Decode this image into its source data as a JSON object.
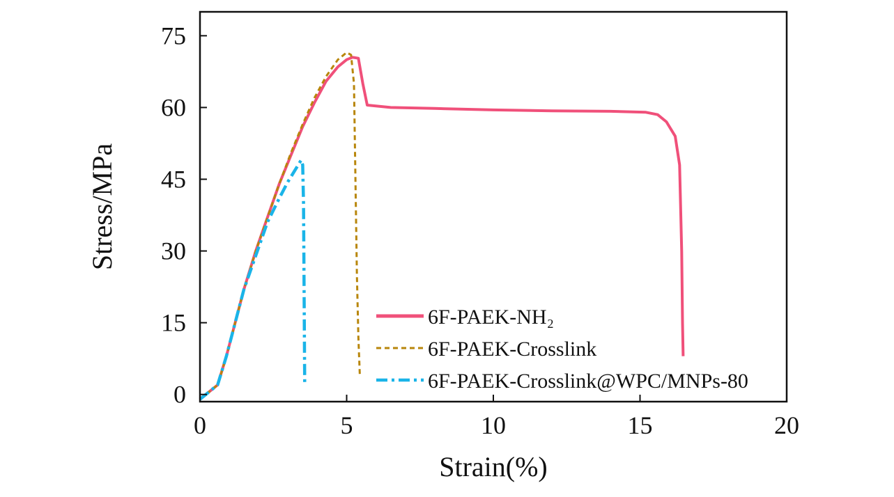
{
  "chart_data": {
    "type": "line",
    "title": "",
    "xlabel": "Strain(%)",
    "ylabel": "Stress/MPa",
    "xlim": [
      0,
      20
    ],
    "ylim": [
      -1.5,
      80
    ],
    "xticks": [
      0,
      5,
      10,
      15,
      20
    ],
    "yticks": [
      0,
      15,
      30,
      45,
      60,
      75
    ],
    "xtick_labels": [
      "0",
      "5",
      "10",
      "15",
      "20"
    ],
    "ytick_labels": [
      "0",
      "15",
      "30",
      "45",
      "60",
      "75"
    ],
    "grid": false,
    "legend_position": "bottom-right",
    "series": [
      {
        "name": "6F-PAEK-NH₂",
        "color": "#f0507a",
        "style": "solid",
        "x": [
          0,
          0.3,
          0.6,
          0.9,
          1.2,
          1.5,
          1.9,
          2.3,
          2.7,
          3.1,
          3.5,
          3.9,
          4.3,
          4.7,
          5.0,
          5.2,
          5.4,
          5.55,
          5.7,
          6.5,
          8,
          10,
          12,
          14,
          15.2,
          15.6,
          15.9,
          16.2,
          16.35,
          16.42,
          16.45,
          16.47
        ],
        "y": [
          -1,
          0.5,
          2,
          8,
          15,
          22,
          30,
          37,
          44,
          50,
          56,
          61,
          65.5,
          68.5,
          70,
          70.5,
          70.3,
          65,
          60.5,
          60,
          59.8,
          59.5,
          59.3,
          59.2,
          59.0,
          58.5,
          57,
          54,
          48,
          30,
          15,
          8
        ]
      },
      {
        "name": "6F-PAEK-Crosslink",
        "color": "#b8860b",
        "style": "dashed",
        "x": [
          0,
          0.3,
          0.6,
          0.9,
          1.2,
          1.5,
          1.9,
          2.3,
          2.7,
          3.1,
          3.5,
          3.9,
          4.3,
          4.7,
          5.0,
          5.15,
          5.25,
          5.3,
          5.35,
          5.4,
          5.45
        ],
        "y": [
          -1,
          0.5,
          2,
          8,
          15,
          22,
          30,
          37,
          44,
          50.5,
          56.5,
          62,
          66.5,
          70,
          71.5,
          71,
          65,
          45,
          25,
          12,
          4
        ]
      },
      {
        "name": "6F-PAEK-Crosslink@WPC/MNPs-80",
        "color": "#1ab4e8",
        "style": "dashdot",
        "x": [
          0,
          0.3,
          0.6,
          0.9,
          1.2,
          1.5,
          1.9,
          2.3,
          2.7,
          3.0,
          3.2,
          3.35,
          3.45,
          3.5,
          3.53,
          3.55,
          3.57
        ],
        "y": [
          -1,
          0.5,
          2,
          8,
          15,
          22,
          29,
          36,
          41,
          44.5,
          46.5,
          48,
          49,
          48,
          40,
          20,
          2
        ]
      }
    ]
  }
}
